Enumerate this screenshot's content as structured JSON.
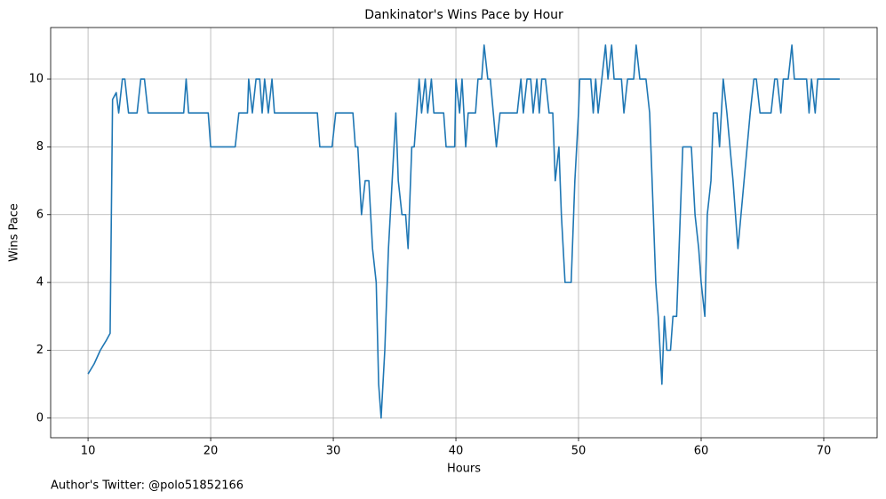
{
  "chart_data": {
    "type": "line",
    "title": "Dankinator's Wins Pace by Hour",
    "xlabel": "Hours",
    "ylabel": "Wins Pace",
    "annotation": "Author's Twitter: @polo51852166",
    "grid": true,
    "xlim": [
      6.95,
      74.35
    ],
    "ylim": [
      -0.58,
      11.52
    ],
    "xticks": [
      10,
      20,
      30,
      40,
      50,
      60,
      70
    ],
    "yticks": [
      0,
      2,
      4,
      6,
      8,
      10
    ],
    "x": [
      10,
      10.5,
      11,
      11.5,
      11.8,
      12.0,
      12.3,
      12.5,
      12.8,
      13.0,
      13.3,
      14.0,
      14.3,
      14.6,
      14.9,
      17.8,
      18.0,
      18.2,
      19.8,
      20.0,
      22.0,
      22.3,
      23.0,
      23.1,
      23.4,
      23.7,
      24.0,
      24.2,
      24.4,
      24.7,
      25.0,
      25.2,
      28.7,
      28.9,
      29.9,
      30.2,
      31.6,
      31.8,
      32.0,
      32.3,
      32.6,
      32.9,
      33.2,
      33.5,
      33.7,
      33.9,
      34.2,
      34.5,
      34.8,
      35.1,
      35.3,
      35.6,
      35.9,
      36.1,
      36.4,
      36.6,
      37.0,
      37.2,
      37.5,
      37.7,
      38.0,
      38.2,
      39.0,
      39.2,
      39.9,
      40.0,
      40.3,
      40.5,
      40.8,
      41.0,
      41.6,
      41.8,
      42.1,
      42.3,
      42.6,
      42.8,
      43.3,
      43.6,
      45.0,
      45.3,
      45.5,
      45.8,
      46.1,
      46.3,
      46.6,
      46.8,
      47.0,
      47.3,
      47.6,
      47.9,
      48.1,
      48.4,
      48.6,
      48.9,
      49.4,
      49.7,
      50.0,
      50.1,
      51.0,
      51.2,
      51.4,
      51.6,
      51.9,
      52.2,
      52.4,
      52.7,
      52.9,
      53.5,
      53.7,
      54.0,
      54.5,
      54.7,
      55.0,
      55.5,
      55.8,
      56.0,
      56.3,
      56.5,
      56.8,
      57.0,
      57.2,
      57.5,
      57.7,
      58.0,
      58.2,
      58.5,
      59.0,
      59.2,
      59.5,
      59.8,
      60.0,
      60.3,
      60.5,
      60.8,
      61.0,
      61.3,
      61.5,
      61.8,
      62.1,
      62.6,
      63.0,
      63.5,
      64.0,
      64.3,
      64.5,
      64.8,
      65.7,
      66.0,
      66.2,
      66.5,
      66.7,
      67.1,
      67.4,
      67.6,
      68.6,
      68.8,
      69.0,
      69.3,
      69.5,
      71.3
    ],
    "series": [
      {
        "name": "Wins Pace",
        "color": "#1f77b4",
        "values": [
          1.3,
          1.6,
          2.0,
          2.3,
          2.5,
          9.4,
          9.6,
          9,
          10,
          10,
          9,
          9,
          10,
          10,
          9,
          9,
          10,
          9,
          9,
          8,
          8,
          9,
          9,
          10,
          9,
          10,
          10,
          9,
          10,
          9,
          10,
          9,
          9,
          8,
          8,
          9,
          9,
          8,
          8,
          6,
          7,
          7,
          5,
          4,
          1,
          0,
          2,
          5,
          7,
          9,
          7,
          6,
          6,
          5,
          8,
          8,
          10,
          9,
          10,
          9,
          10,
          9,
          9,
          8,
          8,
          10,
          9,
          10,
          8,
          9,
          9,
          10,
          10,
          11,
          10,
          10,
          8,
          9,
          9,
          10,
          9,
          10,
          10,
          9,
          10,
          9,
          10,
          10,
          9,
          9,
          7,
          8,
          6,
          4,
          4,
          7,
          9,
          10,
          10,
          9,
          10,
          9,
          10,
          11,
          10,
          11,
          10,
          10,
          9,
          10,
          10,
          11,
          10,
          10,
          9,
          7,
          4,
          3,
          1,
          3,
          2,
          2,
          3,
          3,
          5,
          8,
          8,
          8,
          6,
          5,
          4,
          3,
          6,
          7,
          9,
          9,
          8,
          10,
          9,
          7,
          5,
          7,
          9,
          10,
          10,
          9,
          9,
          10,
          10,
          9,
          10,
          10,
          11,
          10,
          10,
          9,
          10,
          9,
          10,
          10
        ]
      }
    ]
  }
}
